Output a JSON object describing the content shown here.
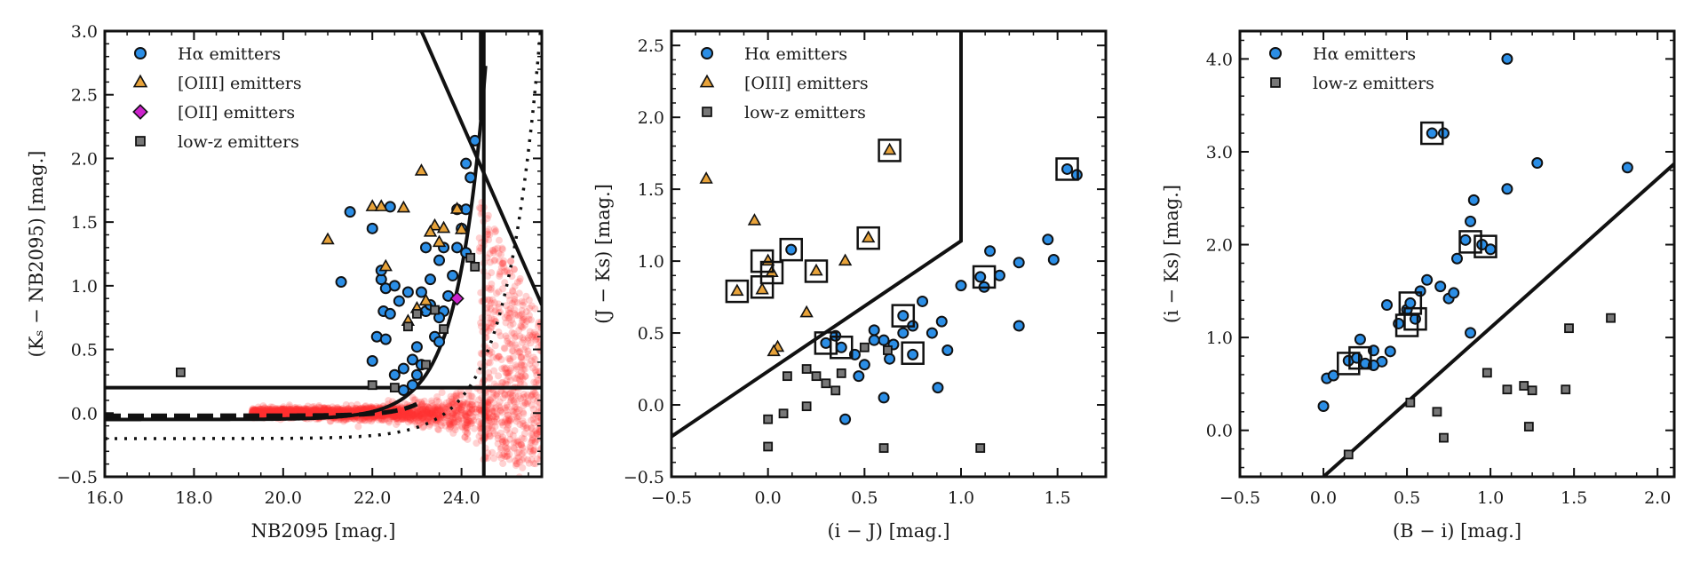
{
  "chart_data": [
    {
      "type": "scatter",
      "xlabel": "NB2095 [mag.]",
      "ylabel": "(Kₛ − NB2095) [mag.]",
      "xlim": [
        16.0,
        25.8
      ],
      "ylim": [
        -0.5,
        3.0
      ],
      "xticks": [
        16.0,
        18.0,
        20.0,
        22.0,
        24.0
      ],
      "xtick_labels": [
        "16.0",
        "18.0",
        "20.0",
        "22.0",
        "24.0"
      ],
      "yticks": [
        -0.5,
        0.0,
        0.5,
        1.0,
        1.5,
        2.0,
        2.5,
        3.0
      ],
      "ytick_labels": [
        "−0.5",
        "0.0",
        "0.5",
        "1.0",
        "1.5",
        "2.0",
        "2.5",
        "3.0"
      ],
      "legend": {
        "placement": "top-left",
        "entries": [
          {
            "label": "Hα emitters",
            "marker": "circle",
            "color": "#2b8ee6"
          },
          {
            "label": "[OIII] emitters",
            "marker": "triangle",
            "color": "#e8a33a"
          },
          {
            "label": "[OII] emitters",
            "marker": "diamond",
            "color": "#cc22cc"
          },
          {
            "label": "low-z emitters",
            "marker": "square",
            "color": "#777777"
          }
        ]
      },
      "series": [
        {
          "name": "Hα emitters",
          "marker": "circle",
          "color": "#2b8ee6",
          "points": [
            [
              21.3,
              1.03
            ],
            [
              21.5,
              1.58
            ],
            [
              22.0,
              1.45
            ],
            [
              22.2,
              1.05
            ],
            [
              22.3,
              0.98
            ],
            [
              22.25,
              0.8
            ],
            [
              22.4,
              0.78
            ],
            [
              22.5,
              1.0
            ],
            [
              22.6,
              0.88
            ],
            [
              22.1,
              0.6
            ],
            [
              22.0,
              0.41
            ],
            [
              22.3,
              0.58
            ],
            [
              22.5,
              0.3
            ],
            [
              22.7,
              0.35
            ],
            [
              22.9,
              0.42
            ],
            [
              23.0,
              0.3
            ],
            [
              23.1,
              0.38
            ],
            [
              23.2,
              0.8
            ],
            [
              23.3,
              0.85
            ],
            [
              23.1,
              0.95
            ],
            [
              23.4,
              0.6
            ],
            [
              23.5,
              0.56
            ],
            [
              23.6,
              0.8
            ],
            [
              23.7,
              0.92
            ],
            [
              23.8,
              1.08
            ],
            [
              23.9,
              1.3
            ],
            [
              24.0,
              1.45
            ],
            [
              24.1,
              1.6
            ],
            [
              23.9,
              1.6
            ],
            [
              24.2,
              1.85
            ],
            [
              24.3,
              2.14
            ],
            [
              24.1,
              1.96
            ],
            [
              23.6,
              1.3
            ],
            [
              23.5,
              1.2
            ],
            [
              23.3,
              1.05
            ],
            [
              22.8,
              0.95
            ],
            [
              22.4,
              1.62
            ],
            [
              22.2,
              1.12
            ],
            [
              23.2,
              1.3
            ],
            [
              23.5,
              0.75
            ],
            [
              22.9,
              0.22
            ],
            [
              22.7,
              0.18
            ],
            [
              23.0,
              0.52
            ],
            [
              24.1,
              1.26
            ]
          ]
        },
        {
          "name": "[OIII] emitters",
          "marker": "triangle",
          "color": "#e8a33a",
          "points": [
            [
              21.0,
              1.36
            ],
            [
              22.0,
              1.62
            ],
            [
              22.3,
              1.15
            ],
            [
              22.7,
              1.61
            ],
            [
              23.1,
              1.9
            ],
            [
              23.4,
              1.47
            ],
            [
              23.6,
              1.45
            ],
            [
              23.9,
              1.6
            ],
            [
              23.2,
              0.88
            ],
            [
              23.0,
              0.82
            ],
            [
              22.8,
              0.72
            ],
            [
              23.5,
              1.34
            ],
            [
              24.0,
              1.44
            ],
            [
              22.2,
              1.62
            ],
            [
              23.3,
              1.42
            ]
          ]
        },
        {
          "name": "[OII] emitters",
          "marker": "diamond",
          "color": "#cc22cc",
          "points": [
            [
              23.9,
              0.9
            ]
          ]
        },
        {
          "name": "low-z emitters",
          "marker": "square",
          "color": "#777777",
          "points": [
            [
              17.7,
              0.32
            ],
            [
              22.0,
              0.22
            ],
            [
              22.5,
              0.2
            ],
            [
              23.0,
              0.78
            ],
            [
              23.4,
              0.81
            ],
            [
              23.6,
              0.66
            ],
            [
              24.2,
              1.22
            ],
            [
              24.3,
              1.15
            ],
            [
              22.8,
              0.68
            ],
            [
              23.2,
              0.38
            ]
          ]
        }
      ]
    },
    {
      "type": "scatter",
      "xlabel": "(i − J) [mag.]",
      "ylabel": "(J − Ks) [mag.]",
      "xlim": [
        -0.5,
        1.75
      ],
      "ylim": [
        -0.5,
        2.6
      ],
      "xticks": [
        -0.5,
        0.0,
        0.5,
        1.0,
        1.5
      ],
      "xtick_labels": [
        "−0.5",
        "0.0",
        "0.5",
        "1.0",
        "1.5"
      ],
      "yticks": [
        -0.5,
        0.0,
        0.5,
        1.0,
        1.5,
        2.0,
        2.5
      ],
      "ytick_labels": [
        "−0.5",
        "0.0",
        "0.5",
        "1.0",
        "1.5",
        "2.0",
        "2.5"
      ],
      "legend": {
        "placement": "top-left",
        "entries": [
          {
            "label": "Hα emitters",
            "marker": "circle",
            "color": "#2b8ee6"
          },
          {
            "label": "[OIII] emitters",
            "marker": "triangle",
            "color": "#e8a33a"
          },
          {
            "label": "low-z emitters",
            "marker": "square",
            "color": "#777777"
          }
        ]
      },
      "series": [
        {
          "name": "Hα emitters",
          "marker": "circle",
          "color": "#2b8ee6",
          "points": [
            [
              0.12,
              1.08
            ],
            [
              0.3,
              0.43
            ],
            [
              0.38,
              0.4
            ],
            [
              0.35,
              0.48
            ],
            [
              0.45,
              0.35
            ],
            [
              0.47,
              0.2
            ],
            [
              0.5,
              0.28
            ],
            [
              0.55,
              0.52
            ],
            [
              0.6,
              0.45
            ],
            [
              0.65,
              0.42
            ],
            [
              0.7,
              0.62
            ],
            [
              0.75,
              0.55
            ],
            [
              0.8,
              0.72
            ],
            [
              0.85,
              0.5
            ],
            [
              0.9,
              0.58
            ],
            [
              0.93,
              0.38
            ],
            [
              0.88,
              0.12
            ],
            [
              1.0,
              0.83
            ],
            [
              1.1,
              0.89
            ],
            [
              1.15,
              1.07
            ],
            [
              1.2,
              0.9
            ],
            [
              1.3,
              0.99
            ],
            [
              1.45,
              1.15
            ],
            [
              1.48,
              1.01
            ],
            [
              1.55,
              1.64
            ],
            [
              1.6,
              1.6
            ],
            [
              0.6,
              0.05
            ],
            [
              0.4,
              -0.1
            ],
            [
              0.75,
              0.35
            ],
            [
              0.63,
              0.32
            ],
            [
              0.7,
              0.5
            ],
            [
              1.12,
              0.82
            ],
            [
              1.3,
              0.55
            ],
            [
              0.55,
              0.45
            ]
          ]
        },
        {
          "name": "[OIII] emitters",
          "marker": "triangle",
          "color": "#e8a33a",
          "points": [
            [
              -0.32,
              1.57
            ],
            [
              -0.07,
              1.28
            ],
            [
              0.0,
              1.0
            ],
            [
              0.02,
              0.92
            ],
            [
              -0.03,
              0.8
            ],
            [
              -0.16,
              0.79
            ],
            [
              0.05,
              0.4
            ],
            [
              0.03,
              0.37
            ],
            [
              0.2,
              0.64
            ],
            [
              0.25,
              0.93
            ],
            [
              0.4,
              1.0
            ],
            [
              0.52,
              1.16
            ],
            [
              0.63,
              1.77
            ]
          ]
        },
        {
          "name": "low-z emitters",
          "marker": "square",
          "color": "#777777",
          "points": [
            [
              0.0,
              -0.1
            ],
            [
              0.0,
              -0.29
            ],
            [
              0.08,
              -0.06
            ],
            [
              0.1,
              0.2
            ],
            [
              0.2,
              0.25
            ],
            [
              0.25,
              0.2
            ],
            [
              0.3,
              0.15
            ],
            [
              0.35,
              0.1
            ],
            [
              0.38,
              0.22
            ],
            [
              0.2,
              -0.01
            ],
            [
              0.5,
              0.4
            ],
            [
              0.6,
              -0.3
            ],
            [
              1.1,
              -0.3
            ],
            [
              0.62,
              0.38
            ]
          ]
        }
      ]
    },
    {
      "type": "scatter",
      "xlabel": "(B − i) [mag.]",
      "ylabel": "(i − Ks) [mag.]",
      "xlim": [
        -0.5,
        2.1
      ],
      "ylim": [
        -0.5,
        4.3
      ],
      "xticks": [
        -0.5,
        0.0,
        0.5,
        1.0,
        1.5,
        2.0
      ],
      "xtick_labels": [
        "−0.5",
        "0.0",
        "0.5",
        "1.0",
        "1.5",
        "2.0"
      ],
      "yticks": [
        0.0,
        1.0,
        2.0,
        3.0,
        4.0
      ],
      "ytick_labels": [
        "0.0",
        "1.0",
        "2.0",
        "3.0",
        "4.0"
      ],
      "legend": {
        "placement": "top-left",
        "entries": [
          {
            "label": "Hα emitters",
            "marker": "circle",
            "color": "#2b8ee6"
          },
          {
            "label": "low-z emitters",
            "marker": "square",
            "color": "#777777"
          }
        ]
      },
      "series": [
        {
          "name": "Hα emitters",
          "marker": "circle",
          "color": "#2b8ee6",
          "points": [
            [
              0.0,
              0.26
            ],
            [
              0.02,
              0.56
            ],
            [
              0.06,
              0.59
            ],
            [
              0.15,
              0.75
            ],
            [
              0.2,
              0.78
            ],
            [
              0.25,
              0.72
            ],
            [
              0.3,
              0.86
            ],
            [
              0.35,
              0.74
            ],
            [
              0.38,
              1.35
            ],
            [
              0.45,
              1.15
            ],
            [
              0.5,
              1.3
            ],
            [
              0.52,
              1.37
            ],
            [
              0.55,
              1.2
            ],
            [
              0.58,
              1.5
            ],
            [
              0.62,
              1.62
            ],
            [
              0.65,
              3.2
            ],
            [
              0.72,
              3.2
            ],
            [
              0.75,
              1.42
            ],
            [
              0.7,
              1.55
            ],
            [
              0.78,
              1.48
            ],
            [
              0.8,
              1.85
            ],
            [
              0.85,
              2.05
            ],
            [
              0.88,
              2.25
            ],
            [
              0.9,
              2.48
            ],
            [
              0.95,
              2.0
            ],
            [
              1.0,
              1.95
            ],
            [
              0.88,
              1.05
            ],
            [
              1.1,
              2.6
            ],
            [
              1.1,
              4.0
            ],
            [
              1.28,
              2.88
            ],
            [
              1.82,
              2.83
            ],
            [
              0.22,
              0.98
            ],
            [
              0.3,
              0.7
            ],
            [
              0.4,
              0.85
            ]
          ]
        },
        {
          "name": "low-z emitters",
          "marker": "square",
          "color": "#777777",
          "points": [
            [
              0.15,
              -0.26
            ],
            [
              0.52,
              0.3
            ],
            [
              0.68,
              0.2
            ],
            [
              0.72,
              -0.08
            ],
            [
              0.98,
              0.62
            ],
            [
              1.1,
              0.44
            ],
            [
              1.2,
              0.48
            ],
            [
              1.25,
              0.43
            ],
            [
              1.23,
              0.04
            ],
            [
              1.45,
              0.44
            ],
            [
              1.47,
              1.1
            ],
            [
              1.72,
              1.21
            ]
          ]
        }
      ]
    }
  ]
}
